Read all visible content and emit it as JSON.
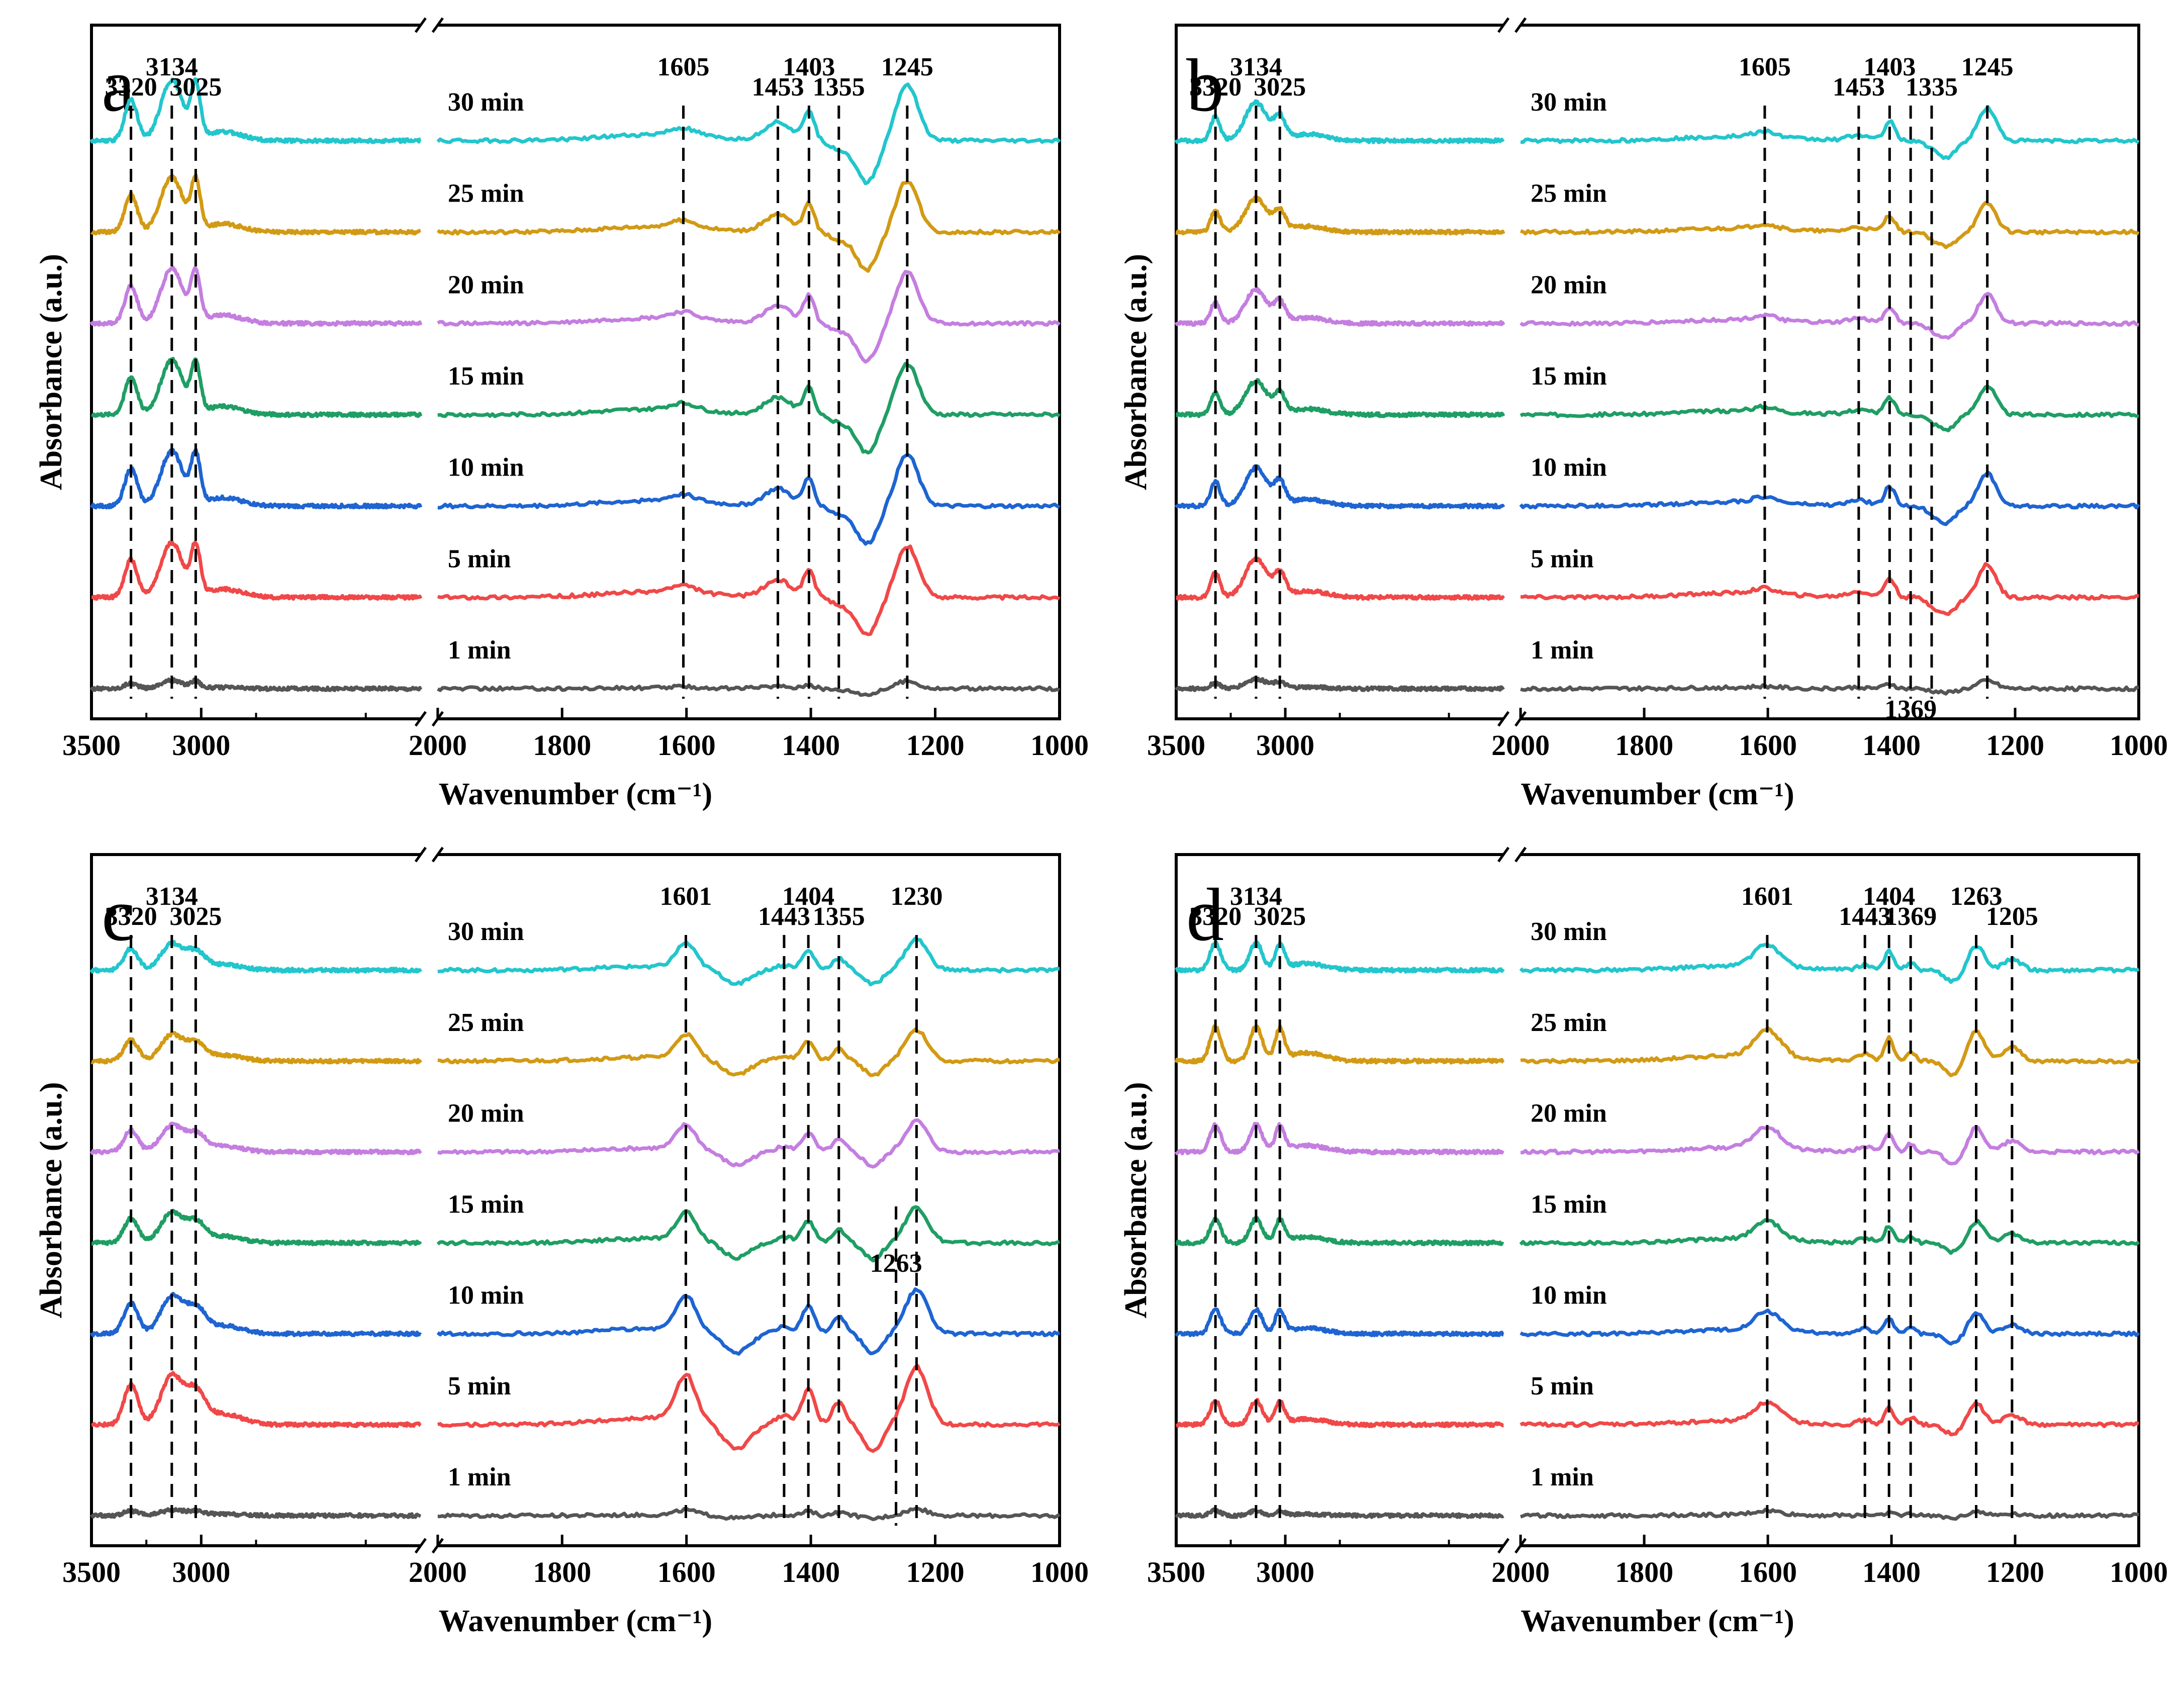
{
  "colors": {
    "1 min": "#555555",
    "5 min": "#f04848",
    "10 min": "#1e64d2",
    "15 min": "#1f9e64",
    "20 min": "#c47ee0",
    "25 min": "#d29a14",
    "30 min": "#22c6cc"
  },
  "chart_data": [
    {
      "type": "line",
      "panel": "a",
      "title": "",
      "xlabel": "Wavenumber (cm⁻¹)",
      "ylabel": "Absorbance (a.u.)",
      "x_ticks_left": [
        "3500",
        "3000"
      ],
      "x_ticks_right": [
        "2000",
        "1800",
        "1600",
        "1400",
        "1200",
        "1000"
      ],
      "xlim_left": [
        3500,
        2000
      ],
      "xlim_right": [
        2000,
        1000
      ],
      "series": [
        {
          "name": "1 min",
          "label": "1 min",
          "baseline": 0,
          "scale": 0.15
        },
        {
          "name": "5 min",
          "label": "5 min",
          "baseline": 1,
          "scale": 1.0
        },
        {
          "name": "10 min",
          "label": "10 min",
          "baseline": 2,
          "scale": 1.0
        },
        {
          "name": "15 min",
          "label": "15 min",
          "baseline": 3,
          "scale": 1.0
        },
        {
          "name": "20 min",
          "label": "20 min",
          "baseline": 4,
          "scale": 1.0
        },
        {
          "name": "25 min",
          "label": "25 min",
          "baseline": 5,
          "scale": 1.0
        },
        {
          "name": "30 min",
          "label": "30 min",
          "baseline": 6,
          "scale": 1.1
        }
      ],
      "peaks": [
        {
          "x": 3320,
          "label": "3320",
          "amp": 0.55,
          "w": 40
        },
        {
          "x": 3134,
          "label": "3134",
          "amp": 0.8,
          "w": 70
        },
        {
          "x": 3025,
          "label": "3025",
          "amp": 0.7,
          "w": 30
        },
        {
          "x": 1605,
          "label": "1605",
          "amp": 0.1,
          "w": 30
        },
        {
          "x": 1453,
          "label": "1453",
          "amp": 0.25,
          "w": 30
        },
        {
          "x": 1403,
          "label": "1403",
          "amp": 0.4,
          "w": 12
        },
        {
          "x": 1355,
          "label": "1355",
          "amp": -0.1,
          "w": 20
        },
        {
          "x": 1245,
          "label": "1245",
          "amp": 0.75,
          "w": 25
        }
      ],
      "dips": [
        {
          "x": 1310,
          "amp": -0.55,
          "w": 25
        }
      ],
      "bottom_labels": []
    },
    {
      "type": "line",
      "panel": "b",
      "title": "",
      "xlabel": "Wavenumber (cm⁻¹)",
      "ylabel": "Absorbance (a.u.)",
      "x_ticks_left": [
        "3500",
        "3000"
      ],
      "x_ticks_right": [
        "2000",
        "1800",
        "1600",
        "1400",
        "1200",
        "1000"
      ],
      "xlim_left": [
        3500,
        2000
      ],
      "xlim_right": [
        2000,
        1000
      ],
      "series": [
        {
          "name": "1 min",
          "label": "1 min",
          "baseline": 0,
          "scale": 0.2
        },
        {
          "name": "5 min",
          "label": "5 min",
          "baseline": 1,
          "scale": 0.8
        },
        {
          "name": "10 min",
          "label": "10 min",
          "baseline": 2,
          "scale": 0.8
        },
        {
          "name": "15 min",
          "label": "15 min",
          "baseline": 3,
          "scale": 0.7
        },
        {
          "name": "20 min",
          "label": "20 min",
          "baseline": 4,
          "scale": 0.7
        },
        {
          "name": "25 min",
          "label": "25 min",
          "baseline": 5,
          "scale": 0.7
        },
        {
          "name": "30 min",
          "label": "30 min",
          "baseline": 6,
          "scale": 0.8
        }
      ],
      "peaks": [
        {
          "x": 3320,
          "label": "3320",
          "amp": 0.45,
          "w": 30
        },
        {
          "x": 3134,
          "label": "3134",
          "amp": 0.7,
          "w": 70
        },
        {
          "x": 3025,
          "label": "3025",
          "amp": 0.4,
          "w": 35
        },
        {
          "x": 1605,
          "label": "1605",
          "amp": 0.1,
          "w": 25
        },
        {
          "x": 1453,
          "label": "1453",
          "amp": 0.1,
          "w": 25
        },
        {
          "x": 1403,
          "label": "1403",
          "amp": 0.35,
          "w": 12
        },
        {
          "x": 1335,
          "label": "1335",
          "amp": -0.1,
          "w": 15
        },
        {
          "x": 1245,
          "label": "1245",
          "amp": 0.6,
          "w": 20
        }
      ],
      "dips": [
        {
          "x": 1310,
          "amp": -0.3,
          "w": 20
        }
      ],
      "bottom_labels": [
        {
          "x": 1369,
          "label": "1369"
        }
      ]
    },
    {
      "type": "line",
      "panel": "c",
      "title": "",
      "xlabel": "Wavenumber (cm⁻¹)",
      "ylabel": "Absorbance (a.u.)",
      "x_ticks_left": [
        "3500",
        "3000"
      ],
      "x_ticks_right": [
        "2000",
        "1800",
        "1600",
        "1400",
        "1200",
        "1000"
      ],
      "xlim_left": [
        3500,
        2000
      ],
      "xlim_right": [
        2000,
        1000
      ],
      "series": [
        {
          "name": "1 min",
          "label": "1 min",
          "baseline": 0,
          "scale": 0.15
        },
        {
          "name": "5 min",
          "label": "5 min",
          "baseline": 1,
          "scale": 1.3
        },
        {
          "name": "10 min",
          "label": "10 min",
          "baseline": 2,
          "scale": 1.0
        },
        {
          "name": "15 min",
          "label": "15 min",
          "baseline": 3,
          "scale": 0.8
        },
        {
          "name": "20 min",
          "label": "20 min",
          "baseline": 4,
          "scale": 0.7
        },
        {
          "name": "25 min",
          "label": "25 min",
          "baseline": 5,
          "scale": 0.7
        },
        {
          "name": "30 min",
          "label": "30 min",
          "baseline": 6,
          "scale": 0.7
        }
      ],
      "peaks": [
        {
          "x": 3320,
          "label": "3320",
          "amp": 0.45,
          "w": 45
        },
        {
          "x": 3134,
          "label": "3134",
          "amp": 0.55,
          "w": 70
        },
        {
          "x": 3025,
          "label": "3025",
          "amp": 0.35,
          "w": 60
        },
        {
          "x": 1601,
          "label": "1601",
          "amp": 0.5,
          "w": 22
        },
        {
          "x": 1443,
          "label": "1443",
          "amp": 0.1,
          "w": 20
        },
        {
          "x": 1404,
          "label": "1404",
          "amp": 0.4,
          "w": 14
        },
        {
          "x": 1355,
          "label": "1355",
          "amp": 0.25,
          "w": 15
        },
        {
          "x": 1230,
          "label": "1230",
          "amp": 0.65,
          "w": 25
        }
      ],
      "dips": [
        {
          "x": 1520,
          "amp": -0.3,
          "w": 30
        },
        {
          "x": 1300,
          "amp": -0.3,
          "w": 20
        }
      ],
      "extra_label": {
        "x": 1263,
        "label": "1263"
      },
      "bottom_labels": []
    },
    {
      "type": "line",
      "panel": "d",
      "title": "",
      "xlabel": "Wavenumber (cm⁻¹)",
      "ylabel": "Absorbance (a.u.)",
      "x_ticks_left": [
        "3500",
        "3000"
      ],
      "x_ticks_right": [
        "2000",
        "1800",
        "1600",
        "1400",
        "1200",
        "1000"
      ],
      "xlim_left": [
        3500,
        2000
      ],
      "xlim_right": [
        2000,
        1000
      ],
      "series": [
        {
          "name": "1 min",
          "label": "1 min",
          "baseline": 0,
          "scale": 0.15
        },
        {
          "name": "5 min",
          "label": "5 min",
          "baseline": 1,
          "scale": 0.7
        },
        {
          "name": "10 min",
          "label": "10 min",
          "baseline": 2,
          "scale": 0.7
        },
        {
          "name": "15 min",
          "label": "15 min",
          "baseline": 3,
          "scale": 0.7
        },
        {
          "name": "20 min",
          "label": "20 min",
          "baseline": 4,
          "scale": 0.8
        },
        {
          "name": "25 min",
          "label": "25 min",
          "baseline": 5,
          "scale": 1.0
        },
        {
          "name": "30 min",
          "label": "30 min",
          "baseline": 6,
          "scale": 0.8
        }
      ],
      "peaks": [
        {
          "x": 3320,
          "label": "3320",
          "amp": 0.5,
          "w": 35
        },
        {
          "x": 3134,
          "label": "3134",
          "amp": 0.5,
          "w": 40
        },
        {
          "x": 3025,
          "label": "3025",
          "amp": 0.45,
          "w": 30
        },
        {
          "x": 1601,
          "label": "1601",
          "amp": 0.4,
          "w": 30
        },
        {
          "x": 1443,
          "label": "1443",
          "amp": 0.1,
          "w": 15
        },
        {
          "x": 1404,
          "label": "1404",
          "amp": 0.35,
          "w": 10
        },
        {
          "x": 1369,
          "label": "1369",
          "amp": 0.15,
          "w": 10
        },
        {
          "x": 1263,
          "label": "1263",
          "amp": 0.45,
          "w": 18
        },
        {
          "x": 1205,
          "label": "1205",
          "amp": 0.2,
          "w": 20
        }
      ],
      "dips": [
        {
          "x": 1300,
          "amp": -0.2,
          "w": 20
        }
      ],
      "bottom_labels": []
    }
  ]
}
